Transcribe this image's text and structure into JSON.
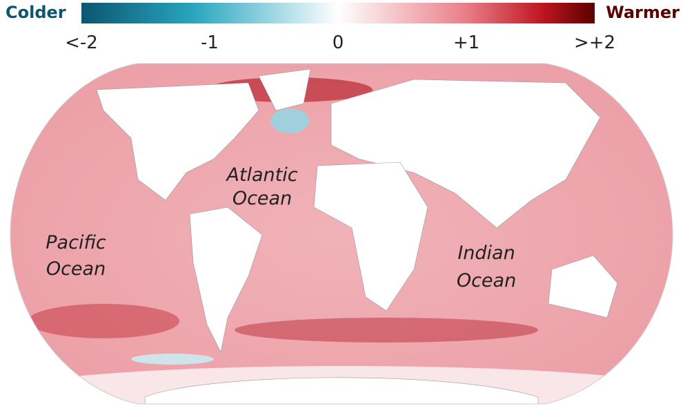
{
  "legend": {
    "left_label": "Colder",
    "right_label": "Warmer",
    "ticks": [
      "<-2",
      "-1",
      "0",
      "+1",
      ">+2"
    ]
  },
  "labels": {
    "atlantic": "Atlantic Ocean",
    "pacific": "Pacific Ocean",
    "indian": "Indian Ocean"
  }
}
